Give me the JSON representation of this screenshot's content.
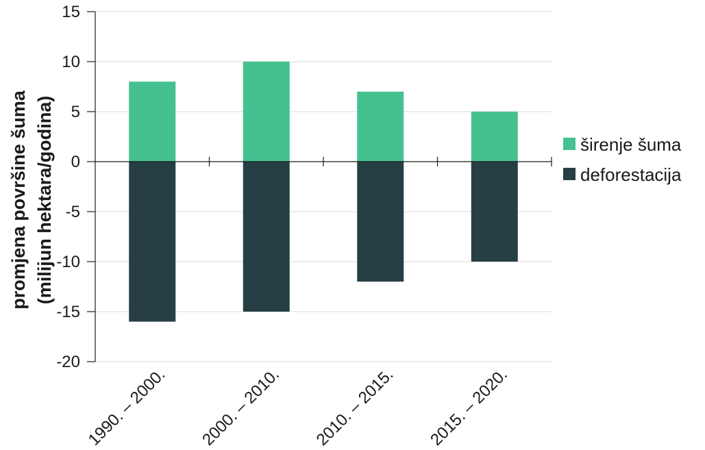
{
  "chart_data": {
    "type": "bar",
    "stacked": true,
    "categories": [
      "1990. – 2000.",
      "2000. – 2010.",
      "2010. – 2015.",
      "2015. – 2020."
    ],
    "series": [
      {
        "name": "širenje šuma",
        "values": [
          8,
          10,
          7,
          5
        ],
        "color": "#45c18f"
      },
      {
        "name": "deforestacija",
        "values": [
          -16,
          -15,
          -12,
          -10
        ],
        "color": "#263f44"
      }
    ],
    "ylabel_line1": "promjena površine šuma",
    "ylabel_line2": "(milijun hektara/godina)",
    "ylim": [
      -20,
      15
    ],
    "yticks": [
      15,
      10,
      5,
      0,
      -5,
      -10,
      -15,
      -20
    ],
    "grid": true,
    "legend_position": "right"
  }
}
